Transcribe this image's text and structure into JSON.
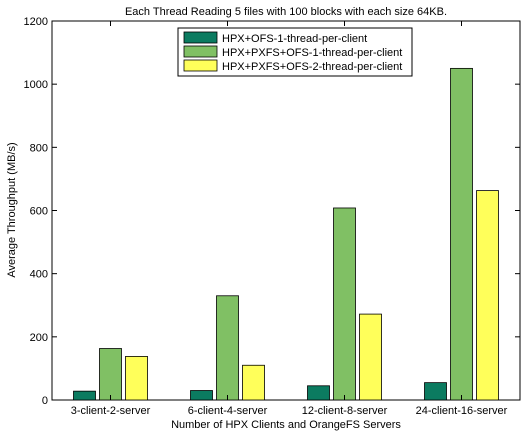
{
  "chart_data": {
    "type": "bar",
    "title": "Each Thread Reading 5 files with 100 blocks with each size 64KB.",
    "xlabel": "Number of HPX Clients and OrangeFS Servers",
    "ylabel": "Average Throughput (MB/s)",
    "categories": [
      "3-client-2-server",
      "6-client-4-server",
      "12-client-8-server",
      "24-client-16-server"
    ],
    "ylim": [
      0,
      1200
    ],
    "yticks": [
      0,
      200,
      400,
      600,
      800,
      1000,
      1200
    ],
    "grid": false,
    "legend_position": "top-center",
    "series": [
      {
        "name": "HPX+OFS-1-thread-per-client",
        "color": "#0b7b60",
        "values": [
          28,
          30,
          45,
          55
        ]
      },
      {
        "name": "HPX+PXFS+OFS-1-thread-per-client",
        "color": "#80c064",
        "values": [
          163,
          330,
          608,
          1050
        ]
      },
      {
        "name": "HPX+PXFS+OFS-2-thread-per-client",
        "color": "#ffff5a",
        "values": [
          138,
          110,
          272,
          663
        ]
      }
    ]
  }
}
